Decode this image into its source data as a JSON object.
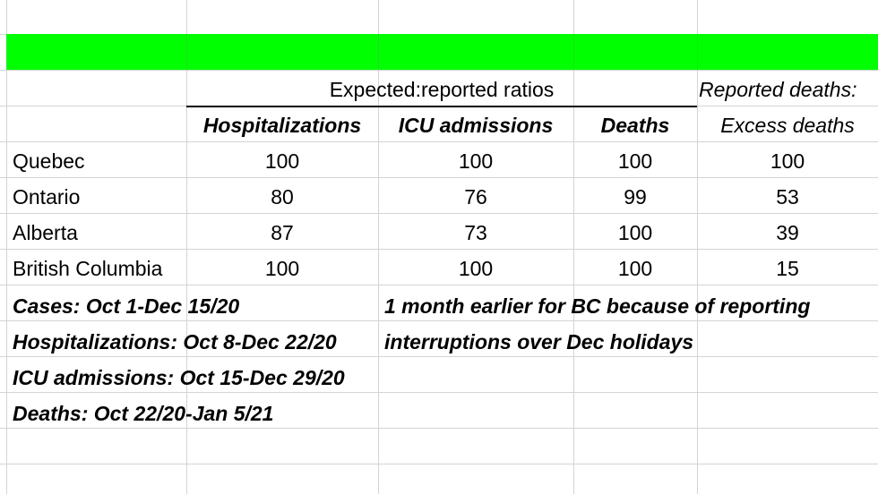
{
  "sheet": {
    "header_group": {
      "expected_ratios": "Expected:reported ratios",
      "reported_deaths": "Reported deaths:"
    },
    "columns": {
      "hospitalizations": "Hospitalizations",
      "icu": "ICU admissions",
      "deaths": "Deaths",
      "excess": "Excess deaths"
    },
    "rows": [
      {
        "province": "Quebec",
        "hosp": "100",
        "icu": "100",
        "deaths": "100",
        "excess": "100"
      },
      {
        "province": "Ontario",
        "hosp": "80",
        "icu": "76",
        "deaths": "99",
        "excess": "53"
      },
      {
        "province": "Alberta",
        "hosp": "87",
        "icu": "73",
        "deaths": "100",
        "excess": "39"
      },
      {
        "province": "British Columbia",
        "hosp": "100",
        "icu": "100",
        "deaths": "100",
        "excess": "15"
      }
    ],
    "notes": {
      "cases": "Cases: Oct 1-Dec 15/20",
      "hospitalizations": "Hospitalizations: Oct 8-Dec 22/20",
      "icu": "ICU admissions: Oct 15-Dec 29/20",
      "deaths": "Deaths: Oct 22/20-Jan 5/21",
      "bc_note_1": "1 month earlier for BC because of reporting",
      "bc_note_2": "interruptions over Dec holidays"
    },
    "colors": {
      "header_fill": "#00ff00",
      "gridline": "#d4d4d4"
    }
  }
}
